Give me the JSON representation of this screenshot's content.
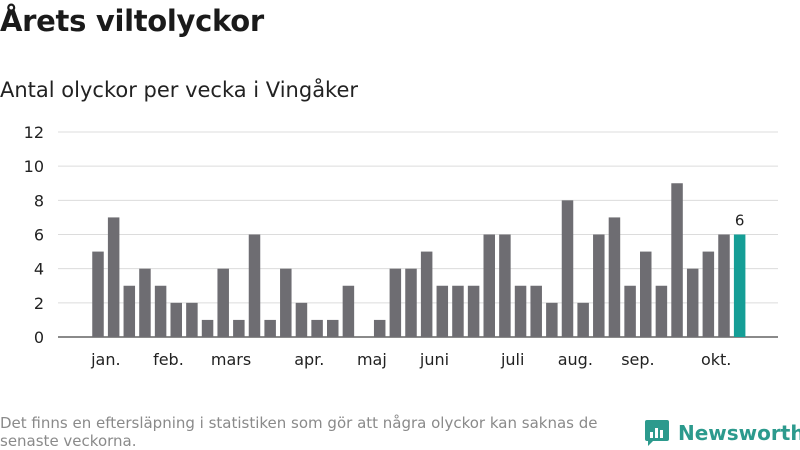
{
  "title": "Årets viltolyckor",
  "subtitle": "Antal olyckor per vecka i Vingåker",
  "footnote": "Det finns en eftersläpning i statistiken som gör att några olyckor kan saknas de senaste veckorna.",
  "brand": {
    "name": "Newsworthy",
    "icon": "newsworthy-logo-icon"
  },
  "colors": {
    "bar": "#6e6d72",
    "highlight": "#159e96",
    "grid": "#dcdcdc",
    "axis": "#444444"
  },
  "chart_data": {
    "type": "bar",
    "title": "Antal olyckor per vecka i Vingåker",
    "xlabel": "",
    "ylabel": "",
    "ylim": [
      0,
      12
    ],
    "yticks": [
      0,
      2,
      4,
      6,
      8,
      10,
      12
    ],
    "grid": true,
    "week_start": 1,
    "values": [
      5,
      7,
      3,
      4,
      3,
      2,
      2,
      1,
      4,
      1,
      6,
      1,
      4,
      2,
      1,
      1,
      3,
      0,
      1,
      4,
      4,
      5,
      3,
      3,
      3,
      6,
      6,
      3,
      3,
      2,
      8,
      2,
      6,
      7,
      3,
      5,
      3,
      9,
      4,
      5,
      6,
      6
    ],
    "highlight_last": true,
    "highlight_label": "6",
    "month_labels": [
      {
        "label": "jan.",
        "week": 1.5
      },
      {
        "label": "feb.",
        "week": 5.5
      },
      {
        "label": "mars",
        "week": 9.5
      },
      {
        "label": "apr.",
        "week": 14.5
      },
      {
        "label": "maj",
        "week": 18.5
      },
      {
        "label": "juni",
        "week": 22.5
      },
      {
        "label": "juli",
        "week": 27.5
      },
      {
        "label": "aug.",
        "week": 31.5
      },
      {
        "label": "sep.",
        "week": 35.5
      },
      {
        "label": "okt.",
        "week": 40.5
      }
    ]
  }
}
